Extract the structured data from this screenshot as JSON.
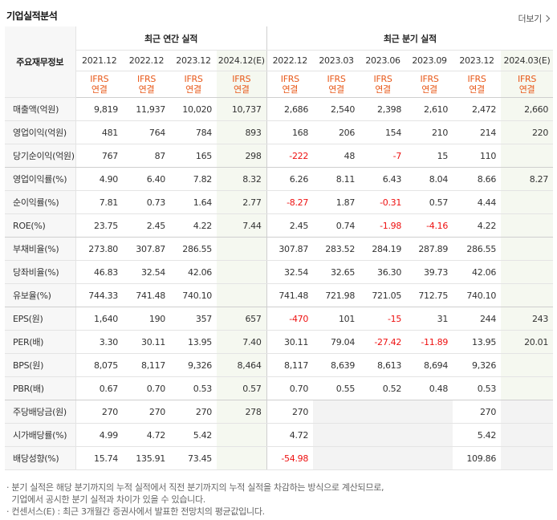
{
  "header": {
    "title": "기업실적분석",
    "more_label": "더보기"
  },
  "table": {
    "corner_label": "주요재무정보",
    "group_annual": "최근 연간 실적",
    "group_quarter": "최근 분기 실적",
    "periods": [
      "2021.12",
      "2022.12",
      "2023.12",
      "2024.12(E)",
      "2022.12",
      "2023.03",
      "2023.06",
      "2023.09",
      "2023.12",
      "2024.03(E)"
    ],
    "ifrs_line1": "IFRS",
    "ifrs_line2": "연결",
    "rows": [
      {
        "label": "매출액(억원)",
        "values": [
          "9,819",
          "11,937",
          "10,020",
          "10,737",
          "2,686",
          "2,540",
          "2,398",
          "2,610",
          "2,472",
          "2,660"
        ]
      },
      {
        "label": "영업이익(억원)",
        "values": [
          "481",
          "764",
          "784",
          "893",
          "168",
          "206",
          "154",
          "210",
          "214",
          "220"
        ]
      },
      {
        "label": "당기순이익(억원)",
        "values": [
          "767",
          "87",
          "165",
          "298",
          "-222",
          "48",
          "-7",
          "15",
          "110",
          ""
        ]
      },
      {
        "label": "영업이익률(%)",
        "values": [
          "4.90",
          "6.40",
          "7.82",
          "8.32",
          "6.26",
          "8.11",
          "6.43",
          "8.04",
          "8.66",
          "8.27"
        ]
      },
      {
        "label": "순이익률(%)",
        "values": [
          "7.81",
          "0.73",
          "1.64",
          "2.77",
          "-8.27",
          "1.87",
          "-0.31",
          "0.57",
          "4.44",
          ""
        ]
      },
      {
        "label": "ROE(%)",
        "values": [
          "23.75",
          "2.45",
          "4.22",
          "7.44",
          "2.45",
          "0.74",
          "-1.98",
          "-4.16",
          "4.22",
          ""
        ]
      },
      {
        "label": "부채비율(%)",
        "values": [
          "273.80",
          "307.87",
          "286.55",
          "",
          "307.87",
          "283.52",
          "284.19",
          "287.89",
          "286.55",
          ""
        ]
      },
      {
        "label": "당좌비율(%)",
        "values": [
          "46.83",
          "32.54",
          "42.06",
          "",
          "32.54",
          "32.65",
          "36.30",
          "39.73",
          "42.06",
          ""
        ]
      },
      {
        "label": "유보율(%)",
        "values": [
          "744.33",
          "741.48",
          "740.10",
          "",
          "741.48",
          "721.98",
          "721.05",
          "712.75",
          "740.10",
          ""
        ]
      },
      {
        "label": "EPS(원)",
        "values": [
          "1,640",
          "190",
          "357",
          "657",
          "-470",
          "101",
          "-15",
          "31",
          "244",
          "243"
        ]
      },
      {
        "label": "PER(배)",
        "values": [
          "3.30",
          "30.11",
          "13.95",
          "7.40",
          "30.11",
          "79.04",
          "-27.42",
          "-11.89",
          "13.95",
          "20.01"
        ]
      },
      {
        "label": "BPS(원)",
        "values": [
          "8,075",
          "8,117",
          "9,326",
          "8,464",
          "8,117",
          "8,639",
          "8,613",
          "8,694",
          "9,326",
          ""
        ]
      },
      {
        "label": "PBR(배)",
        "values": [
          "0.67",
          "0.70",
          "0.53",
          "0.57",
          "0.70",
          "0.55",
          "0.52",
          "0.48",
          "0.53",
          ""
        ]
      },
      {
        "label": "주당배당금(원)",
        "values": [
          "270",
          "270",
          "270",
          "278",
          "270",
          "",
          "",
          "",
          "270",
          ""
        ]
      },
      {
        "label": "시가배당률(%)",
        "values": [
          "4.99",
          "4.72",
          "5.42",
          "",
          "4.72",
          "",
          "",
          "",
          "5.42",
          ""
        ]
      },
      {
        "label": "배당성향(%)",
        "values": [
          "15.74",
          "135.91",
          "73.45",
          "",
          "-54.98",
          "",
          "",
          "",
          "109.86",
          ""
        ]
      }
    ]
  },
  "notes": [
    "· 분기 실적은 해당 분기까지의 누적 실적에서 직전 분기까지의 누적 실적을 차감하는 방식으로 계산되므로,",
    "  기업에서 공시한 분기 실적과 차이가 있을 수 있습니다.",
    "· 컨센서스(E) : 최근 3개월간 증권사에서 발표한 전망치의 평균값입니다."
  ],
  "colors": {
    "accent": "#e8591a",
    "negative": "#ee1111",
    "estimate_bg": "#f5f8f0"
  }
}
